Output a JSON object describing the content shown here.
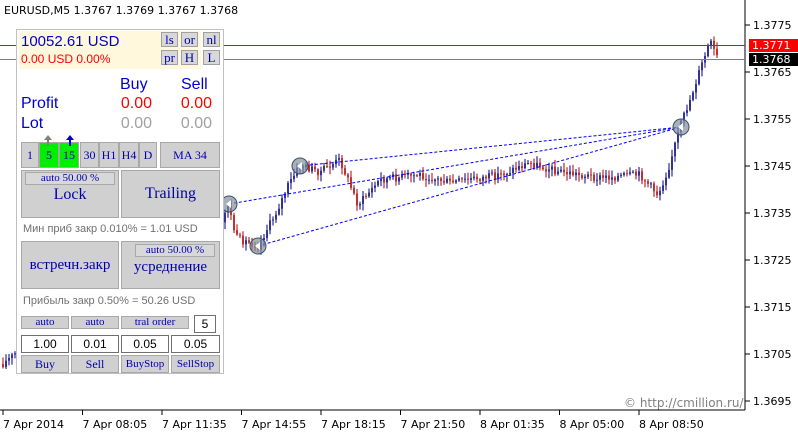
{
  "chart": {
    "symbol_info": "EURUSD,M5  1.3767 1.3769 1.3767 1.3768",
    "price_tag_red": "1.3771",
    "price_tag_black": "1.3768",
    "copyright": "© http://cmillion.ru/",
    "colors": {
      "bull": "#000080",
      "bear": "#b00000",
      "red_line": "#ff0000",
      "trend": "#0000ff"
    }
  },
  "chart_data": {
    "type": "line",
    "y_ticks": [
      "1.3775",
      "1.3765",
      "1.3755",
      "1.3745",
      "1.3735",
      "1.3725",
      "1.3715",
      "1.3705",
      "1.3695"
    ],
    "x_ticks": [
      "7 Apr 2014",
      "7 Apr 08:05",
      "7 Apr 11:35",
      "7 Apr 14:55",
      "7 Apr 18:15",
      "7 Apr 21:50",
      "8 Apr 01:35",
      "8 Apr 05:00",
      "8 Apr 08:50"
    ],
    "ylim": [
      1.369,
      1.3778
    ],
    "horizontal_lines": [
      1.3771,
      1.3768
    ]
  },
  "panel": {
    "balance": "10052.61 USD",
    "profit": "0.00 USD  0.00%",
    "top_buttons": [
      "ls",
      "or",
      "nl",
      "pr",
      "H",
      "L"
    ],
    "buy_header": "Buy",
    "sell_header": "Sell",
    "profit_label": "Profit",
    "lot_label": "Lot",
    "profit_buy": "0.00",
    "profit_sell": "0.00",
    "lot_buy": "0.00",
    "lot_sell": "0.00",
    "timeframes": [
      "1",
      "5",
      "15",
      "30",
      "H1",
      "H4",
      "D"
    ],
    "ma_button": "MA 34",
    "lock_auto": "auto 50.00 %",
    "lock": "Lock",
    "trailing": "Trailing",
    "min_profit": "Мин приб закр 0.010% = 1.01 USD",
    "counter_close": "встречн.закр",
    "avg_auto": "auto 50.00 %",
    "averaging": "усреднение",
    "profit_close": "Прибыль закр 0.50% = 50.26 USD",
    "auto1": "auto",
    "auto2": "auto",
    "tral_order": "tral order",
    "tral_value": "5",
    "inputs": [
      "1.00",
      "0.01",
      "0.05",
      "0.05"
    ],
    "buy_btn": "Buy",
    "sell_btn": "Sell",
    "buystop_btn": "BuyStop",
    "sellstop_btn": "SellStop"
  }
}
